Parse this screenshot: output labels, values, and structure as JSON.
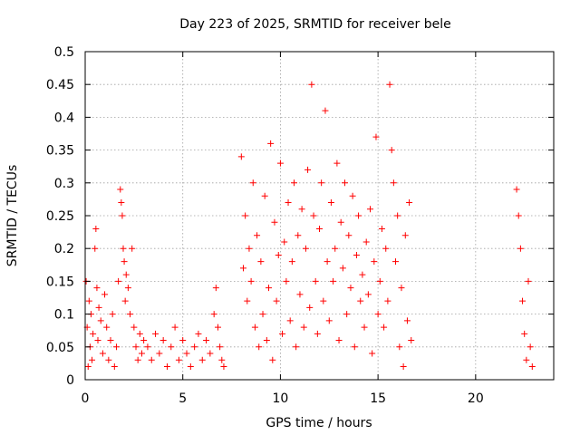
{
  "chart_data": {
    "type": "scatter",
    "title": "Day 223 of 2025, SRMTID for receiver bele",
    "xlabel": "GPS time / hours",
    "ylabel": "SRMTID / TECUs",
    "xlim": [
      0,
      24
    ],
    "ylim": [
      0,
      0.5
    ],
    "xticks": [
      0,
      5,
      10,
      15,
      20
    ],
    "xtick_labels": [
      "0",
      "5",
      "10",
      "15",
      "20"
    ],
    "yticks": [
      0,
      0.05,
      0.1,
      0.15,
      0.2,
      0.25,
      0.3,
      0.35,
      0.4,
      0.45,
      0.5
    ],
    "ytick_labels": [
      "0",
      "0.05",
      "0.1",
      "0.15",
      "0.2",
      "0.25",
      "0.3",
      "0.35",
      "0.4",
      "0.45",
      "0.5"
    ],
    "grid": true,
    "marker": "+",
    "color": "#ff0000",
    "series": [
      {
        "x": [
          0.05,
          0.1,
          0.15,
          0.2,
          0.25,
          0.3,
          0.35,
          0.4,
          0.5,
          0.55,
          0.6,
          0.65,
          0.7,
          0.8,
          0.9,
          1.0,
          1.1,
          1.2,
          1.3,
          1.4,
          1.5,
          1.6,
          1.7,
          1.8,
          1.85,
          1.9,
          1.95,
          2.0,
          2.05,
          2.1,
          2.2,
          2.3,
          2.4,
          2.5,
          2.6,
          2.7,
          2.8,
          2.9,
          3.0,
          3.2,
          3.4,
          3.6,
          3.8,
          4.0,
          4.2,
          4.4,
          4.6,
          4.8,
          5.0,
          5.2,
          5.4,
          5.6,
          5.8,
          6.0,
          6.2,
          6.4,
          6.6,
          6.7,
          6.8,
          6.9,
          7.0,
          7.1,
          8.0,
          8.1,
          8.2,
          8.3,
          8.4,
          8.5,
          8.6,
          8.7,
          8.8,
          8.9,
          9.0,
          9.1,
          9.2,
          9.3,
          9.4,
          9.5,
          9.6,
          9.7,
          9.8,
          9.9,
          10.0,
          10.1,
          10.2,
          10.3,
          10.4,
          10.5,
          10.6,
          10.7,
          10.8,
          10.9,
          11.0,
          11.1,
          11.2,
          11.3,
          11.4,
          11.5,
          11.6,
          11.7,
          11.8,
          11.9,
          12.0,
          12.1,
          12.2,
          12.3,
          12.4,
          12.5,
          12.6,
          12.7,
          12.8,
          12.9,
          13.0,
          13.1,
          13.2,
          13.3,
          13.4,
          13.5,
          13.6,
          13.7,
          13.8,
          13.9,
          14.0,
          14.1,
          14.2,
          14.3,
          14.4,
          14.5,
          14.6,
          14.7,
          14.8,
          14.9,
          15.0,
          15.1,
          15.2,
          15.3,
          15.4,
          15.5,
          15.6,
          15.7,
          15.8,
          15.9,
          16.0,
          16.1,
          16.2,
          16.3,
          16.4,
          16.5,
          16.6,
          16.7,
          22.1,
          22.2,
          22.3,
          22.4,
          22.5,
          22.6,
          22.7,
          22.8,
          22.9
        ],
        "y": [
          0.15,
          0.08,
          0.02,
          0.12,
          0.05,
          0.1,
          0.03,
          0.07,
          0.2,
          0.23,
          0.14,
          0.06,
          0.11,
          0.09,
          0.04,
          0.13,
          0.08,
          0.03,
          0.06,
          0.1,
          0.02,
          0.05,
          0.15,
          0.29,
          0.27,
          0.25,
          0.2,
          0.18,
          0.12,
          0.16,
          0.14,
          0.1,
          0.2,
          0.08,
          0.05,
          0.03,
          0.07,
          0.04,
          0.06,
          0.05,
          0.03,
          0.07,
          0.04,
          0.06,
          0.02,
          0.05,
          0.08,
          0.03,
          0.06,
          0.04,
          0.02,
          0.05,
          0.07,
          0.03,
          0.06,
          0.04,
          0.1,
          0.14,
          0.08,
          0.05,
          0.03,
          0.02,
          0.34,
          0.17,
          0.25,
          0.12,
          0.2,
          0.15,
          0.3,
          0.08,
          0.22,
          0.05,
          0.18,
          0.1,
          0.28,
          0.06,
          0.14,
          0.36,
          0.03,
          0.24,
          0.12,
          0.19,
          0.33,
          0.07,
          0.21,
          0.15,
          0.27,
          0.09,
          0.18,
          0.3,
          0.05,
          0.22,
          0.13,
          0.26,
          0.08,
          0.2,
          0.32,
          0.11,
          0.45,
          0.25,
          0.15,
          0.07,
          0.23,
          0.3,
          0.12,
          0.41,
          0.18,
          0.09,
          0.27,
          0.15,
          0.2,
          0.33,
          0.06,
          0.24,
          0.17,
          0.3,
          0.1,
          0.22,
          0.14,
          0.28,
          0.05,
          0.19,
          0.25,
          0.12,
          0.16,
          0.08,
          0.21,
          0.13,
          0.26,
          0.04,
          0.18,
          0.37,
          0.1,
          0.15,
          0.23,
          0.08,
          0.2,
          0.12,
          0.45,
          0.35,
          0.3,
          0.18,
          0.25,
          0.05,
          0.14,
          0.02,
          0.22,
          0.09,
          0.27,
          0.06,
          0.29,
          0.25,
          0.2,
          0.12,
          0.07,
          0.03,
          0.15,
          0.05,
          0.02
        ]
      }
    ]
  }
}
